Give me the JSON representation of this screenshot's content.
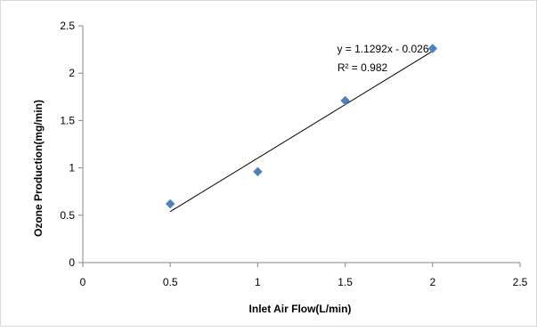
{
  "chart_data": {
    "type": "scatter",
    "title": "",
    "xlabel": "Inlet Air Flow(L/min)",
    "ylabel": "Ozone Production(mg/min)",
    "xlim": [
      0,
      2.5
    ],
    "ylim": [
      0,
      2.5
    ],
    "xticks": [
      0,
      0.5,
      1,
      1.5,
      2,
      2.5
    ],
    "yticks": [
      0,
      0.5,
      1,
      1.5,
      2,
      2.5
    ],
    "xtick_labels": [
      "0",
      "0.5",
      "1",
      "1.5",
      "2",
      "2.5"
    ],
    "ytick_labels": [
      "0",
      "0.5",
      "1",
      "1.5",
      "2",
      "2.5"
    ],
    "grid": false,
    "marker": "diamond",
    "marker_color": "#4f81bd",
    "trendline_color": "#000000",
    "series": [
      {
        "x": [
          0.5,
          1.0,
          1.5,
          2.0
        ],
        "y": [
          0.62,
          0.96,
          1.71,
          2.26
        ]
      }
    ],
    "trendline": {
      "type": "linear",
      "slope": 1.1292,
      "intercept": -0.026,
      "x_range": [
        0.5,
        2.0
      ],
      "equation_label": "y = 1.1292x - 0.026",
      "r2_label": "R² = 0.982"
    }
  }
}
